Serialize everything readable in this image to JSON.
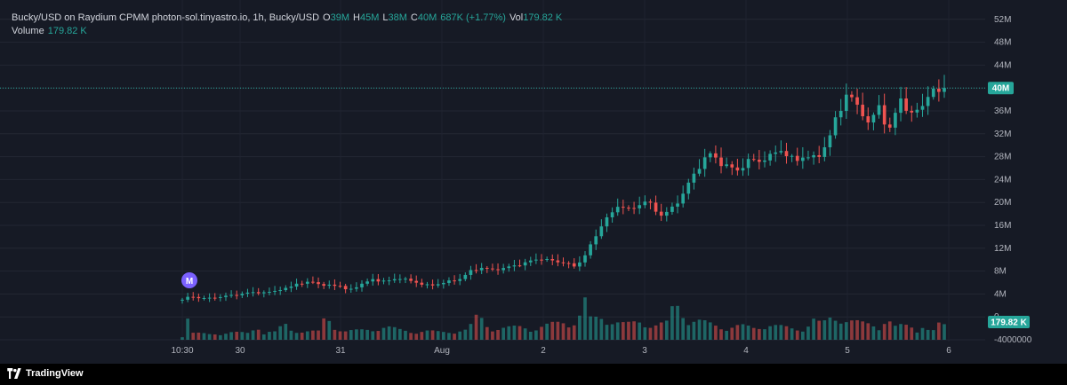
{
  "legend": {
    "title": "Bucky/USD on Raydium CPMM photon-sol.tinyastro.io, 1h, Bucky/USD",
    "o_label": "O",
    "o_value": "39M",
    "h_label": "H",
    "h_value": "45M",
    "l_label": "L",
    "l_value": "38M",
    "c_label": "C",
    "c_value": "40M",
    "change": "687K (+1.77%)",
    "vol_label": "Vol",
    "vol_value": "179.82 K",
    "volume_label": "Volume",
    "volume_value": "179.82 K"
  },
  "colors": {
    "background": "#161a25",
    "up": "#26a69a",
    "down": "#ef5350",
    "marker": "#7b61ff"
  },
  "price_badge": "40M",
  "volume_badge": "179.82 K",
  "marker_label": "M",
  "brand": {
    "name": "TradingView",
    "icon": "tradingview-logo-icon"
  },
  "chart_data": {
    "type": "candlestick",
    "interval": "1h",
    "y_ticks": [
      "52M",
      "48M",
      "44M",
      "40M",
      "36M",
      "32M",
      "28M",
      "24M",
      "20M",
      "16M",
      "12M",
      "8M",
      "4M",
      "0",
      "-4000000"
    ],
    "y_tick_values": [
      52,
      48,
      44,
      40,
      36,
      32,
      28,
      24,
      20,
      16,
      12,
      8,
      4,
      0,
      -4
    ],
    "x_ticks": [
      "10:30",
      "30",
      "31",
      "Aug",
      "2",
      "3",
      "4",
      "5",
      "6"
    ],
    "ylim": [
      -4,
      52
    ],
    "last_price": 40,
    "close_anchors": [
      [
        0,
        3
      ],
      [
        6,
        3.6
      ],
      [
        10,
        3.4
      ],
      [
        18,
        3.2
      ],
      [
        28,
        3.5
      ],
      [
        40,
        3.9
      ],
      [
        52,
        4.3
      ],
      [
        62,
        4.2
      ],
      [
        72,
        4.8
      ],
      [
        78,
        5
      ],
      [
        85,
        6
      ],
      [
        90,
        5.8
      ],
      [
        95,
        6.2
      ],
      [
        105,
        5.4
      ],
      [
        115,
        5.6
      ],
      [
        122,
        4.5
      ],
      [
        130,
        5.6
      ],
      [
        140,
        6.5
      ],
      [
        150,
        6.2
      ],
      [
        160,
        6.8
      ],
      [
        172,
        6
      ],
      [
        182,
        5.4
      ],
      [
        192,
        6
      ],
      [
        203,
        6.5
      ],
      [
        212,
        8
      ],
      [
        220,
        8.6
      ],
      [
        228,
        8.2
      ],
      [
        238,
        8.6
      ],
      [
        250,
        9.3
      ],
      [
        262,
        10.2
      ],
      [
        272,
        9.8
      ],
      [
        282,
        9.4
      ],
      [
        288,
        8.8
      ],
      [
        295,
        10.3
      ],
      [
        300,
        12.5
      ],
      [
        306,
        15
      ],
      [
        310,
        17
      ],
      [
        314,
        17.5
      ],
      [
        320,
        19.4
      ],
      [
        325,
        19.2
      ],
      [
        330,
        18.5
      ],
      [
        335,
        19.6
      ],
      [
        340,
        20.2
      ],
      [
        346,
        19.4
      ],
      [
        350,
        17.6
      ],
      [
        356,
        18.3
      ],
      [
        360,
        19
      ],
      [
        366,
        20.6
      ],
      [
        370,
        22.6
      ],
      [
        376,
        24.8
      ],
      [
        382,
        27
      ],
      [
        386,
        28.6
      ],
      [
        390,
        28.2
      ],
      [
        396,
        26.8
      ],
      [
        402,
        26.2
      ],
      [
        408,
        25.6
      ],
      [
        412,
        26.4
      ],
      [
        418,
        27.6
      ],
      [
        424,
        27.2
      ],
      [
        430,
        27.8
      ],
      [
        434,
        28.2
      ],
      [
        438,
        29.6
      ],
      [
        444,
        28.2
      ],
      [
        450,
        27.4
      ],
      [
        458,
        28.1
      ],
      [
        462,
        27.6
      ],
      [
        468,
        28.4
      ],
      [
        472,
        29.6
      ],
      [
        476,
        31.6
      ],
      [
        480,
        34.6
      ],
      [
        484,
        36.6
      ],
      [
        488,
        38.6
      ],
      [
        492,
        38.2
      ],
      [
        496,
        37
      ],
      [
        500,
        35.6
      ],
      [
        504,
        33.6
      ],
      [
        508,
        35.2
      ],
      [
        512,
        37.1
      ],
      [
        516,
        34
      ],
      [
        520,
        32.6
      ],
      [
        524,
        35.7
      ],
      [
        528,
        38.4
      ],
      [
        532,
        36.2
      ],
      [
        536,
        35.2
      ],
      [
        540,
        36.4
      ],
      [
        544,
        37.1
      ],
      [
        548,
        38.4
      ],
      [
        552,
        39.4
      ],
      [
        560,
        40
      ]
    ],
    "n_candles": 141,
    "volume_anchors": [
      [
        0,
        0.7
      ],
      [
        2,
        9.6
      ],
      [
        4,
        4.5
      ],
      [
        6,
        1.3
      ],
      [
        20,
        1
      ],
      [
        35,
        1.4
      ],
      [
        48,
        1.2
      ],
      [
        56,
        2.6
      ],
      [
        60,
        1.2
      ],
      [
        66,
        1.6
      ],
      [
        70,
        1.2
      ],
      [
        74,
        3.2
      ],
      [
        80,
        1.8
      ],
      [
        90,
        1.6
      ],
      [
        100,
        1.5
      ],
      [
        106,
        4.7
      ],
      [
        110,
        2.6
      ],
      [
        120,
        1.6
      ],
      [
        130,
        1.7
      ],
      [
        140,
        2
      ],
      [
        150,
        2.4
      ],
      [
        160,
        1.8
      ],
      [
        170,
        1.5
      ],
      [
        180,
        1.6
      ],
      [
        190,
        1.4
      ],
      [
        200,
        1.6
      ],
      [
        210,
        1.8
      ],
      [
        218,
        4.9
      ],
      [
        222,
        3
      ],
      [
        230,
        2
      ],
      [
        240,
        2.2
      ],
      [
        250,
        2.5
      ],
      [
        260,
        2
      ],
      [
        270,
        2.8
      ],
      [
        280,
        3.4
      ],
      [
        290,
        3.1
      ],
      [
        296,
        7
      ],
      [
        300,
        3.8
      ],
      [
        308,
        4.2
      ],
      [
        316,
        3.5
      ],
      [
        326,
        2.8
      ],
      [
        336,
        3.4
      ],
      [
        346,
        2.6
      ],
      [
        356,
        3.1
      ],
      [
        362,
        7
      ],
      [
        366,
        6.1
      ],
      [
        372,
        3.5
      ],
      [
        380,
        3.4
      ],
      [
        390,
        2.8
      ],
      [
        400,
        2.2
      ],
      [
        410,
        2.6
      ],
      [
        420,
        2.2
      ],
      [
        430,
        2.8
      ],
      [
        440,
        2.4
      ],
      [
        450,
        2
      ],
      [
        458,
        2.2
      ],
      [
        464,
        3.7
      ],
      [
        470,
        2.8
      ],
      [
        476,
        4
      ],
      [
        480,
        4.1
      ],
      [
        484,
        4.4
      ],
      [
        488,
        3.7
      ],
      [
        494,
        3.3
      ],
      [
        500,
        3
      ],
      [
        506,
        2.9
      ],
      [
        512,
        2.6
      ],
      [
        518,
        3.8
      ],
      [
        524,
        2.3
      ],
      [
        530,
        2.7
      ],
      [
        536,
        2.5
      ],
      [
        540,
        1.9
      ],
      [
        544,
        2.6
      ],
      [
        548,
        1.8
      ],
      [
        552,
        1.6
      ],
      [
        556,
        2.8
      ],
      [
        560,
        2.7
      ]
    ],
    "grid": true,
    "legend_position": "top-left"
  }
}
